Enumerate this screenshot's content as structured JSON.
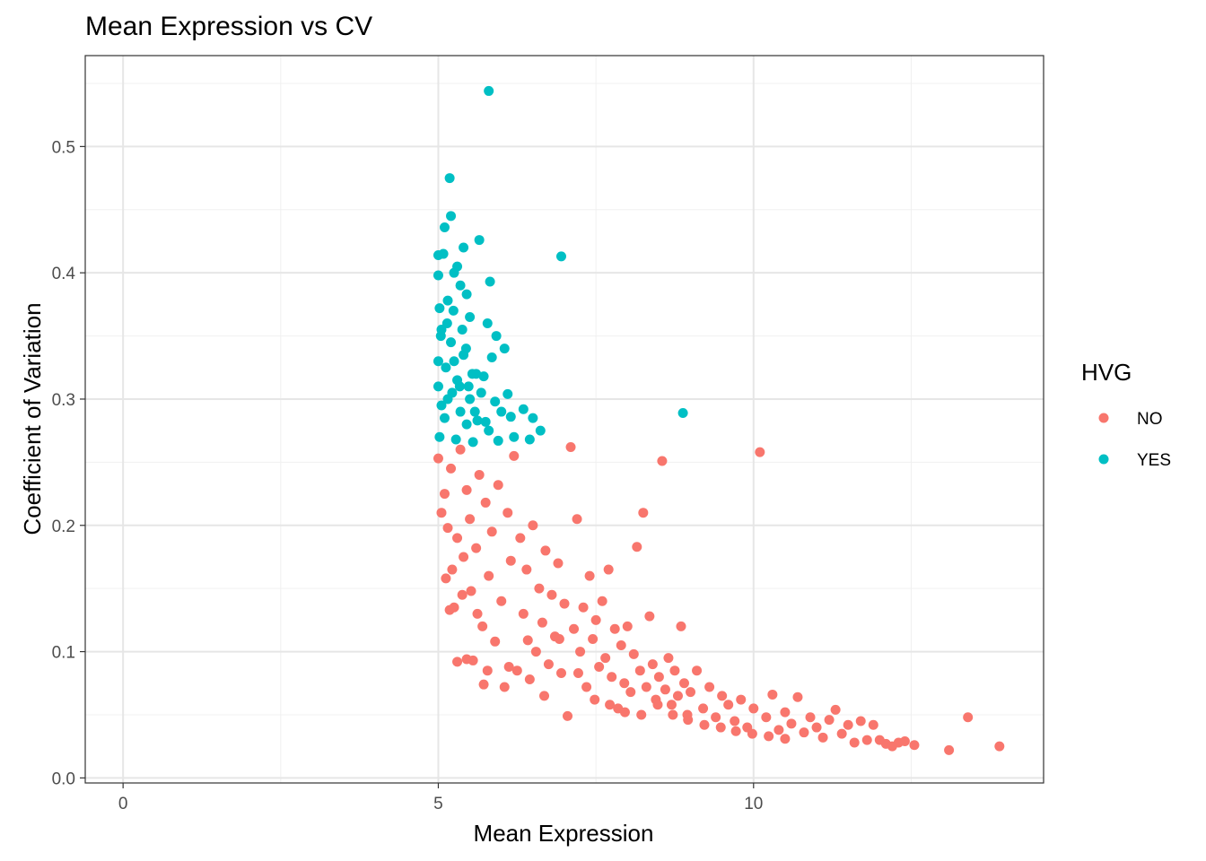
{
  "chart_data": {
    "type": "scatter",
    "title": "Mean Expression vs CV",
    "xlabel": "Mean Expression",
    "ylabel": "Coefficient of Variation",
    "xlim": [
      -0.6,
      14.6
    ],
    "ylim": [
      -0.004,
      0.572
    ],
    "x_ticks": [
      0,
      5,
      10
    ],
    "x_tick_labels": [
      "0",
      "5",
      "10"
    ],
    "y_ticks": [
      0.0,
      0.1,
      0.2,
      0.3,
      0.4,
      0.5
    ],
    "y_tick_labels": [
      "0.0",
      "0.1",
      "0.2",
      "0.3",
      "0.4",
      "0.5"
    ],
    "grid": true,
    "legend": {
      "title": "HVG",
      "position": "right",
      "entries": [
        {
          "label": "NO",
          "color": "#F8766D"
        },
        {
          "label": "YES",
          "color": "#00BFC4"
        }
      ]
    },
    "series": [
      {
        "name": "NO",
        "color": "#F8766D",
        "points": [
          [
            5.0,
            0.253
          ],
          [
            5.05,
            0.21
          ],
          [
            5.1,
            0.225
          ],
          [
            5.15,
            0.198
          ],
          [
            5.2,
            0.245
          ],
          [
            5.22,
            0.165
          ],
          [
            5.25,
            0.135
          ],
          [
            5.3,
            0.19
          ],
          [
            5.35,
            0.26
          ],
          [
            5.38,
            0.145
          ],
          [
            5.4,
            0.175
          ],
          [
            5.45,
            0.228
          ],
          [
            5.5,
            0.205
          ],
          [
            5.52,
            0.148
          ],
          [
            5.55,
            0.093
          ],
          [
            5.6,
            0.182
          ],
          [
            5.65,
            0.24
          ],
          [
            5.7,
            0.12
          ],
          [
            5.72,
            0.074
          ],
          [
            5.75,
            0.218
          ],
          [
            5.8,
            0.16
          ],
          [
            5.85,
            0.195
          ],
          [
            5.9,
            0.108
          ],
          [
            5.95,
            0.232
          ],
          [
            6.0,
            0.14
          ],
          [
            6.05,
            0.072
          ],
          [
            6.1,
            0.21
          ],
          [
            6.15,
            0.172
          ],
          [
            6.2,
            0.255
          ],
          [
            6.25,
            0.085
          ],
          [
            6.3,
            0.19
          ],
          [
            6.35,
            0.13
          ],
          [
            6.4,
            0.165
          ],
          [
            6.45,
            0.078
          ],
          [
            6.5,
            0.2
          ],
          [
            6.55,
            0.1
          ],
          [
            6.6,
            0.15
          ],
          [
            6.65,
            0.123
          ],
          [
            6.7,
            0.18
          ],
          [
            6.75,
            0.09
          ],
          [
            6.8,
            0.145
          ],
          [
            6.85,
            0.112
          ],
          [
            6.9,
            0.17
          ],
          [
            6.95,
            0.083
          ],
          [
            7.0,
            0.138
          ],
          [
            7.05,
            0.049
          ],
          [
            7.1,
            0.262
          ],
          [
            7.15,
            0.118
          ],
          [
            7.2,
            0.205
          ],
          [
            7.25,
            0.1
          ],
          [
            7.3,
            0.135
          ],
          [
            7.35,
            0.072
          ],
          [
            7.4,
            0.16
          ],
          [
            7.45,
            0.11
          ],
          [
            7.5,
            0.125
          ],
          [
            7.55,
            0.088
          ],
          [
            7.6,
            0.14
          ],
          [
            7.65,
            0.095
          ],
          [
            7.7,
            0.165
          ],
          [
            7.75,
            0.08
          ],
          [
            7.8,
            0.118
          ],
          [
            7.85,
            0.055
          ],
          [
            7.9,
            0.105
          ],
          [
            7.95,
            0.075
          ],
          [
            8.0,
            0.12
          ],
          [
            8.05,
            0.068
          ],
          [
            8.1,
            0.098
          ],
          [
            8.15,
            0.183
          ],
          [
            8.2,
            0.085
          ],
          [
            8.25,
            0.21
          ],
          [
            8.3,
            0.072
          ],
          [
            8.35,
            0.128
          ],
          [
            8.4,
            0.09
          ],
          [
            8.45,
            0.062
          ],
          [
            8.5,
            0.08
          ],
          [
            8.55,
            0.251
          ],
          [
            8.6,
            0.07
          ],
          [
            8.65,
            0.095
          ],
          [
            8.7,
            0.058
          ],
          [
            8.75,
            0.085
          ],
          [
            8.8,
            0.065
          ],
          [
            8.85,
            0.12
          ],
          [
            8.9,
            0.075
          ],
          [
            8.95,
            0.05
          ],
          [
            9.0,
            0.068
          ],
          [
            9.1,
            0.085
          ],
          [
            9.2,
            0.055
          ],
          [
            9.3,
            0.072
          ],
          [
            9.4,
            0.048
          ],
          [
            9.5,
            0.065
          ],
          [
            9.6,
            0.058
          ],
          [
            9.7,
            0.045
          ],
          [
            9.8,
            0.062
          ],
          [
            9.9,
            0.04
          ],
          [
            10.0,
            0.055
          ],
          [
            10.1,
            0.258
          ],
          [
            10.2,
            0.048
          ],
          [
            10.3,
            0.066
          ],
          [
            10.4,
            0.038
          ],
          [
            10.5,
            0.052
          ],
          [
            10.6,
            0.043
          ],
          [
            10.7,
            0.064
          ],
          [
            10.8,
            0.036
          ],
          [
            10.9,
            0.048
          ],
          [
            11.0,
            0.04
          ],
          [
            11.1,
            0.032
          ],
          [
            11.2,
            0.046
          ],
          [
            11.3,
            0.054
          ],
          [
            11.4,
            0.035
          ],
          [
            11.5,
            0.042
          ],
          [
            11.6,
            0.028
          ],
          [
            11.7,
            0.045
          ],
          [
            11.8,
            0.03
          ],
          [
            11.9,
            0.042
          ],
          [
            12.0,
            0.03
          ],
          [
            12.1,
            0.027
          ],
          [
            12.2,
            0.025
          ],
          [
            12.3,
            0.028
          ],
          [
            12.4,
            0.029
          ],
          [
            12.55,
            0.026
          ],
          [
            13.1,
            0.022
          ],
          [
            13.4,
            0.048
          ],
          [
            13.9,
            0.025
          ],
          [
            5.12,
            0.158
          ],
          [
            5.18,
            0.133
          ],
          [
            5.3,
            0.092
          ],
          [
            5.45,
            0.094
          ],
          [
            5.62,
            0.13
          ],
          [
            5.78,
            0.085
          ],
          [
            6.12,
            0.088
          ],
          [
            6.42,
            0.109
          ],
          [
            6.68,
            0.065
          ],
          [
            6.92,
            0.11
          ],
          [
            7.22,
            0.083
          ],
          [
            7.48,
            0.062
          ],
          [
            7.72,
            0.058
          ],
          [
            7.96,
            0.052
          ],
          [
            8.22,
            0.05
          ],
          [
            8.48,
            0.058
          ],
          [
            8.72,
            0.05
          ],
          [
            8.96,
            0.046
          ],
          [
            9.22,
            0.042
          ],
          [
            9.48,
            0.04
          ],
          [
            9.72,
            0.037
          ],
          [
            9.98,
            0.035
          ],
          [
            10.24,
            0.033
          ],
          [
            10.5,
            0.031
          ]
        ]
      },
      {
        "name": "YES",
        "color": "#00BFC4",
        "points": [
          [
            5.8,
            0.544
          ],
          [
            5.18,
            0.475
          ],
          [
            5.2,
            0.445
          ],
          [
            5.1,
            0.436
          ],
          [
            5.65,
            0.426
          ],
          [
            5.4,
            0.42
          ],
          [
            5.0,
            0.414
          ],
          [
            5.08,
            0.415
          ],
          [
            6.95,
            0.413
          ],
          [
            5.3,
            0.405
          ],
          [
            5.25,
            0.4
          ],
          [
            5.82,
            0.393
          ],
          [
            5.0,
            0.398
          ],
          [
            5.35,
            0.39
          ],
          [
            5.45,
            0.383
          ],
          [
            5.15,
            0.378
          ],
          [
            5.02,
            0.372
          ],
          [
            5.5,
            0.365
          ],
          [
            5.78,
            0.36
          ],
          [
            5.05,
            0.355
          ],
          [
            5.92,
            0.35
          ],
          [
            5.2,
            0.345
          ],
          [
            6.05,
            0.34
          ],
          [
            5.4,
            0.335
          ],
          [
            5.0,
            0.33
          ],
          [
            5.85,
            0.333
          ],
          [
            5.12,
            0.325
          ],
          [
            5.6,
            0.32
          ],
          [
            5.3,
            0.315
          ],
          [
            5.72,
            0.318
          ],
          [
            5.0,
            0.31
          ],
          [
            5.22,
            0.305
          ],
          [
            5.5,
            0.3
          ],
          [
            6.1,
            0.304
          ],
          [
            5.05,
            0.295
          ],
          [
            5.9,
            0.298
          ],
          [
            5.35,
            0.29
          ],
          [
            6.35,
            0.292
          ],
          [
            8.88,
            0.289
          ],
          [
            5.1,
            0.285
          ],
          [
            5.62,
            0.283
          ],
          [
            6.15,
            0.286
          ],
          [
            5.45,
            0.28
          ],
          [
            6.5,
            0.285
          ],
          [
            5.02,
            0.27
          ],
          [
            5.8,
            0.275
          ],
          [
            6.62,
            0.275
          ],
          [
            5.28,
            0.268
          ],
          [
            6.2,
            0.27
          ],
          [
            6.45,
            0.268
          ],
          [
            5.55,
            0.266
          ],
          [
            5.95,
            0.267
          ],
          [
            5.15,
            0.3
          ],
          [
            5.25,
            0.33
          ],
          [
            5.38,
            0.355
          ],
          [
            5.48,
            0.31
          ],
          [
            5.58,
            0.29
          ],
          [
            5.68,
            0.305
          ],
          [
            5.75,
            0.282
          ],
          [
            6.0,
            0.29
          ],
          [
            5.04,
            0.35
          ],
          [
            5.14,
            0.36
          ],
          [
            5.24,
            0.37
          ],
          [
            5.34,
            0.31
          ],
          [
            5.44,
            0.34
          ],
          [
            5.54,
            0.32
          ]
        ]
      }
    ]
  }
}
